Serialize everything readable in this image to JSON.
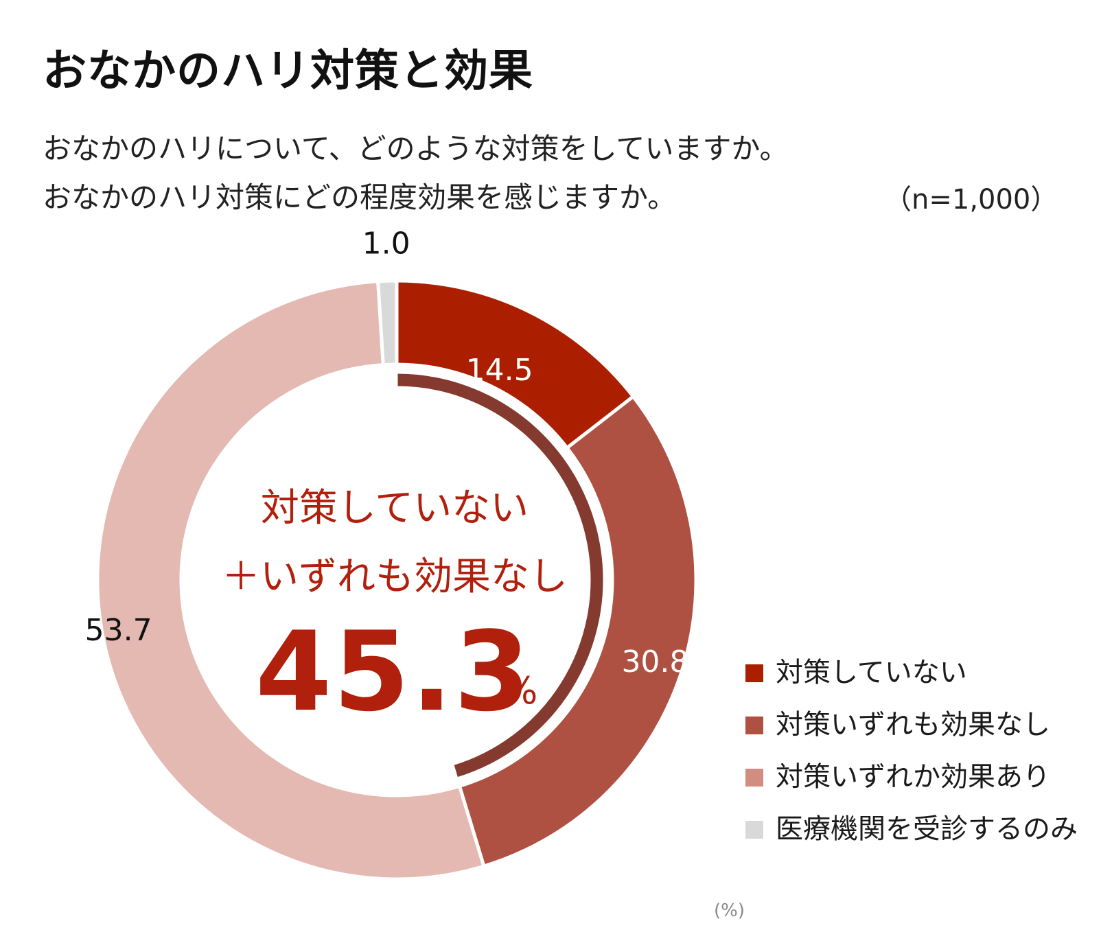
{
  "title": "おなかのハリ対策と効果",
  "question_1": "おなかのハリについて、どのような対策をしていますか。",
  "question_2": "おなかのハリ対策にどの程度効果を感じますか。",
  "sample_size": "（n=1,000）",
  "center": {
    "line1": "対策していない",
    "line2": "＋いずれも効果なし",
    "value": "45.3",
    "unit": "%"
  },
  "unit_note": "(%)",
  "chart_data": {
    "type": "pie",
    "style": "donut",
    "title": "おなかのハリ対策と効果",
    "unit": "%",
    "legend_placement": "bottom-right",
    "slices": [
      {
        "label": "対策していない",
        "value": 14.5,
        "value_label": "14.5",
        "color": "#ac1e00",
        "label_color": "#ffffff"
      },
      {
        "label": "対策いずれも効果なし",
        "value": 30.8,
        "value_label": "30.8",
        "color": "#ae5142",
        "label_color": "#ffffff"
      },
      {
        "label": "対策いずれか効果あり",
        "value": 53.7,
        "value_label": "53.7",
        "color": "#e4b9b2",
        "label_color": "#111111"
      },
      {
        "label": "医療機関を受診するのみ",
        "value": 1.0,
        "value_label": "1.0",
        "color": "#d9d9d9",
        "label_color": "#111111"
      }
    ],
    "highlight_arc": {
      "value": 45.3,
      "color": "#843a2e",
      "covers": [
        "対策していない",
        "対策いずれも効果なし"
      ]
    },
    "legend_colors": [
      "#ac1e00",
      "#ae5142",
      "#d28c80",
      "#d9d9d9"
    ]
  }
}
